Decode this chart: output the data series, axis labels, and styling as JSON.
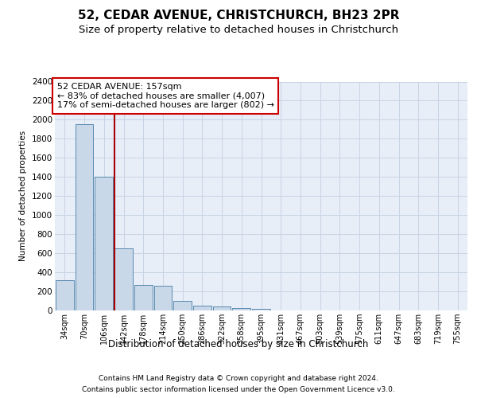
{
  "title": "52, CEDAR AVENUE, CHRISTCHURCH, BH23 2PR",
  "subtitle": "Size of property relative to detached houses in Christchurch",
  "xlabel": "Distribution of detached houses by size in Christchurch",
  "ylabel": "Number of detached properties",
  "footer_line1": "Contains HM Land Registry data © Crown copyright and database right 2024.",
  "footer_line2": "Contains public sector information licensed under the Open Government Licence v3.0.",
  "bar_labels": [
    "34sqm",
    "70sqm",
    "106sqm",
    "142sqm",
    "178sqm",
    "214sqm",
    "250sqm",
    "286sqm",
    "322sqm",
    "358sqm",
    "395sqm",
    "431sqm",
    "467sqm",
    "503sqm",
    "539sqm",
    "575sqm",
    "611sqm",
    "647sqm",
    "683sqm",
    "719sqm",
    "755sqm"
  ],
  "bar_values": [
    320,
    1950,
    1400,
    650,
    270,
    260,
    100,
    50,
    40,
    25,
    20,
    0,
    0,
    0,
    0,
    0,
    0,
    0,
    0,
    0,
    0
  ],
  "bar_color": "#c8d8e8",
  "bar_edge_color": "#5a8ab0",
  "annotation_line1": "52 CEDAR AVENUE: 157sqm",
  "annotation_line2": "← 83% of detached houses are smaller (4,007)",
  "annotation_line3": "17% of semi-detached houses are larger (802) →",
  "vline_color": "#aa0000",
  "vline_position": 2.55,
  "annotation_box_color": "#cc0000",
  "ylim": [
    0,
    2400
  ],
  "yticks": [
    0,
    200,
    400,
    600,
    800,
    1000,
    1200,
    1400,
    1600,
    1800,
    2000,
    2200,
    2400
  ],
  "grid_color": "#c8d4e4",
  "background_color": "#e8eef8",
  "fig_background": "#ffffff",
  "title_fontsize": 11,
  "subtitle_fontsize": 9.5
}
